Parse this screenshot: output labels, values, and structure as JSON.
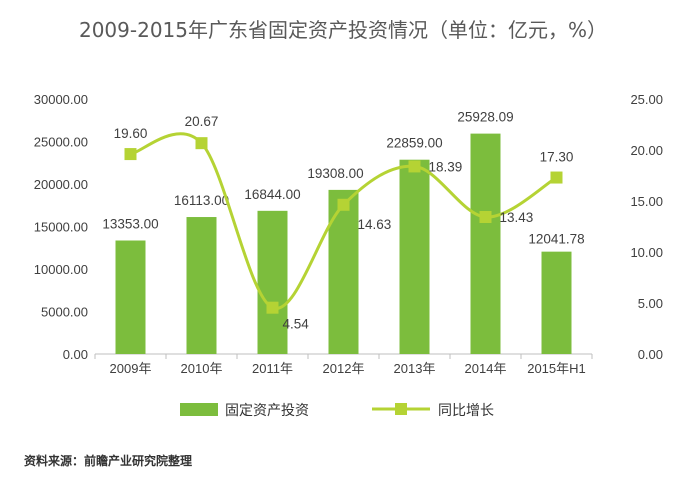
{
  "chart_data": {
    "type": "bar",
    "title": "2009-2015年广东省固定资产投资情况（单位：亿元，%）",
    "categories": [
      "2009年",
      "2010年",
      "2011年",
      "2012年",
      "2013年",
      "2014年",
      "2015年H1"
    ],
    "series": [
      {
        "name": "固定资产投资",
        "type": "bar",
        "axis": "left",
        "color": "#7cbd3d",
        "values": [
          13353.0,
          16113.0,
          16844.0,
          19308.0,
          22859.0,
          25928.09,
          12041.78
        ],
        "labels": [
          "13353.00",
          "16113.00",
          "16844.00",
          "19308.00",
          "22859.00",
          "25928.09",
          "12041.78"
        ]
      },
      {
        "name": "同比增长",
        "type": "line",
        "axis": "right",
        "color": "#b5d334",
        "values": [
          19.6,
          20.67,
          4.54,
          14.63,
          18.39,
          13.43,
          17.3
        ],
        "labels": [
          "19.60",
          "20.67",
          "4.54",
          "14.63",
          "18.39",
          "13.43",
          "17.30"
        ]
      }
    ],
    "ylim_left": [
      0,
      30000
    ],
    "ylim_right": [
      0,
      25
    ],
    "yticks_left": [
      "0.00",
      "5000.00",
      "10000.00",
      "15000.00",
      "20000.00",
      "25000.00",
      "30000.00"
    ],
    "yticks_right": [
      "0.00",
      "5.00",
      "10.00",
      "15.00",
      "20.00",
      "25.00"
    ],
    "legend_position": "bottom",
    "grid": false,
    "source": "资料来源：前瞻产业研究院整理"
  }
}
